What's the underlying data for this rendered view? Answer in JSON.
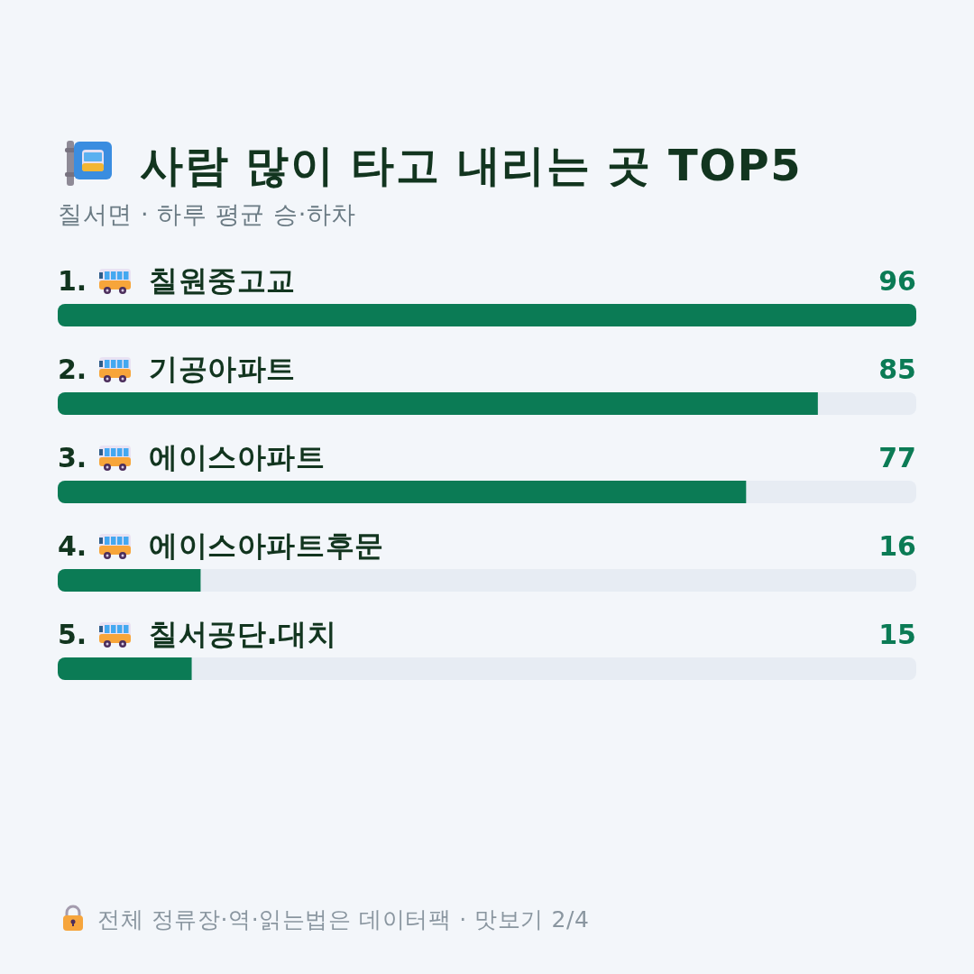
{
  "chart_data": {
    "type": "bar",
    "orientation": "horizontal",
    "title": "사람 많이 타고 내리는 곳 TOP5",
    "subtitle": "칠서면 · 하루 평균 승·하차",
    "categories": [
      "1. 칠원중고교",
      "2. 기공아파트",
      "3. 에이스아파트",
      "4. 에이스아파트후문",
      "5. 칠서공단.대치"
    ],
    "values": [
      96,
      85,
      77,
      16,
      15
    ],
    "color": "#0b7b55",
    "data_labels": true,
    "annotations": [
      "전체 정류장·역·읽는법은 데이터팩 · 맛보기 2/4"
    ]
  }
}
